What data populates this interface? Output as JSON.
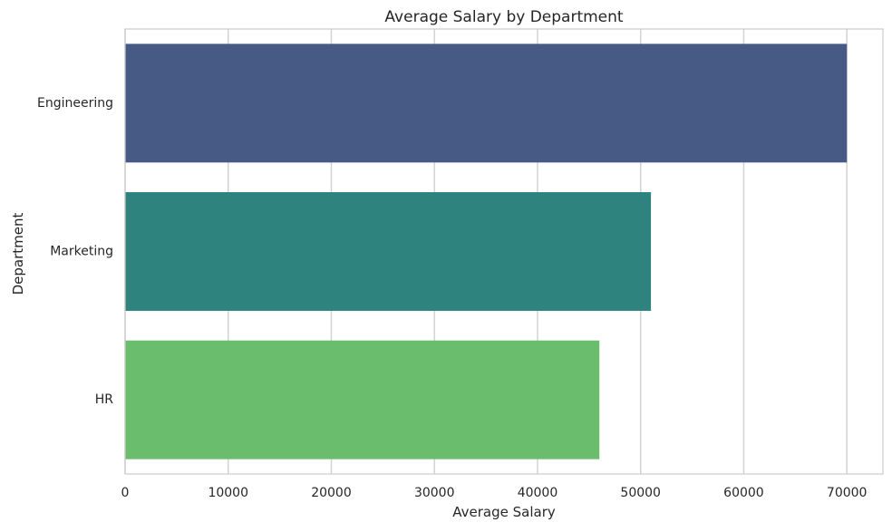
{
  "chart_data": {
    "type": "bar",
    "orientation": "horizontal",
    "title": "Average Salary by Department",
    "xlabel": "Average Salary",
    "ylabel": "Department",
    "categories": [
      "Engineering",
      "Marketing",
      "HR"
    ],
    "values": [
      70000,
      51000,
      46000
    ],
    "colors": [
      "#465a85",
      "#2e837e",
      "#6bbd6e"
    ],
    "xlim": [
      0,
      73500
    ],
    "xticks": [
      0,
      10000,
      20000,
      30000,
      40000,
      50000,
      60000,
      70000
    ],
    "xtick_labels": [
      "0",
      "10000",
      "20000",
      "30000",
      "40000",
      "50000",
      "60000",
      "70000"
    ],
    "grid": true,
    "grid_axis": "x",
    "grid_color": "#d3d3d3",
    "spine_color": "#cccccc",
    "background": "#ffffff"
  }
}
